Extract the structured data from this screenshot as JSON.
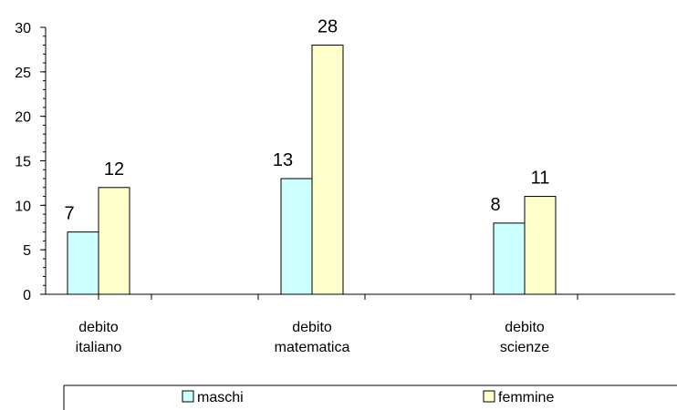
{
  "chart_data": {
    "type": "bar",
    "categories": [
      [
        "debito",
        "italiano"
      ],
      [
        "debito",
        "matematica"
      ],
      [
        "debito",
        "scienze"
      ]
    ],
    "series": [
      {
        "name": "maschi",
        "values": [
          7,
          13,
          8
        ],
        "color": "#CCFFFF"
      },
      {
        "name": "femmine",
        "values": [
          12,
          28,
          11
        ],
        "color": "#FFFFCC"
      }
    ],
    "ylim": [
      0,
      30
    ],
    "yticks": [
      0,
      5,
      10,
      15,
      20,
      25,
      30
    ],
    "minor_tick_step": 1,
    "grid": false,
    "legend_position": "bottom",
    "title": "",
    "xlabel": "",
    "ylabel": ""
  }
}
